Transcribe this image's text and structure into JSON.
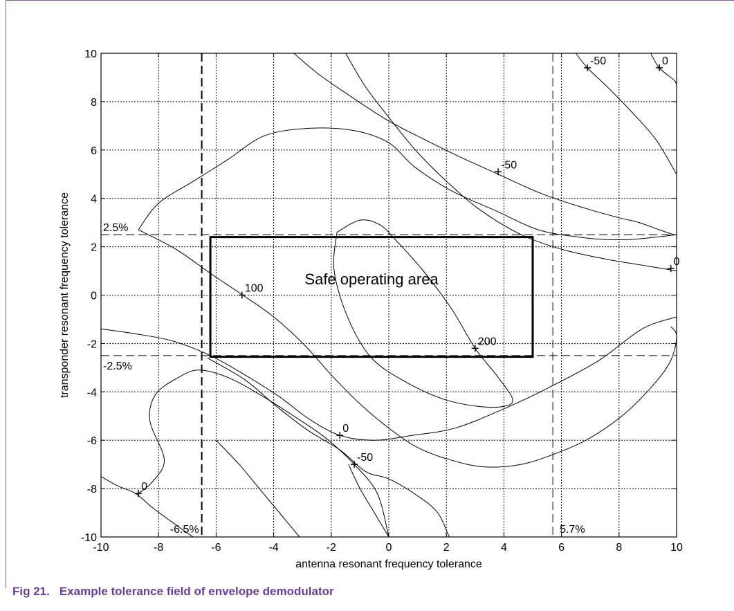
{
  "caption": {
    "number": "Fig 21.",
    "title": "Example tolerance field of envelope demodulator"
  },
  "chart_data": {
    "type": "contour",
    "xlabel": "antenna resonant frequency tolerance",
    "ylabel": "transponder resonant frequency tolerance",
    "xlim": [
      -10,
      10
    ],
    "ylim": [
      -10,
      10
    ],
    "xticks": [
      -10,
      -8,
      -6,
      -4,
      -2,
      0,
      2,
      4,
      6,
      8,
      10
    ],
    "yticks": [
      -10,
      -8,
      -6,
      -4,
      -2,
      0,
      2,
      4,
      6,
      8,
      10
    ],
    "grid": true,
    "safe_area": {
      "label": "Safe operating area",
      "x": [
        -6.2,
        5.0
      ],
      "y": [
        -2.55,
        2.4
      ]
    },
    "limit_lines": [
      {
        "orientation": "horizontal",
        "value": 2.5,
        "label": "2.5%"
      },
      {
        "orientation": "horizontal",
        "value": -2.5,
        "label": "-2.5%"
      },
      {
        "orientation": "vertical",
        "value": -6.5,
        "label": "-6.5%"
      },
      {
        "orientation": "vertical",
        "value": 5.7,
        "label": "5.7%"
      }
    ],
    "contours": [
      {
        "level": "200",
        "points": [
          [
            -1.8,
            2.6
          ],
          [
            -1.0,
            3.1
          ],
          [
            -0.3,
            2.9
          ],
          [
            0.3,
            2.2
          ],
          [
            1.2,
            1.0
          ],
          [
            2.2,
            -0.6
          ],
          [
            3.0,
            -2.2
          ],
          [
            3.8,
            -3.4
          ],
          [
            4.3,
            -4.3
          ],
          [
            4.0,
            -4.6
          ],
          [
            3.1,
            -4.6
          ],
          [
            1.9,
            -4.3
          ],
          [
            0.6,
            -3.6
          ],
          [
            -0.6,
            -2.6
          ],
          [
            -1.4,
            -1.0
          ],
          [
            -1.9,
            1.0
          ],
          [
            -1.8,
            2.6
          ]
        ]
      },
      {
        "level": "100",
        "points": [
          [
            -8.7,
            2.7
          ],
          [
            -8.0,
            3.8
          ],
          [
            -6.8,
            4.7
          ],
          [
            -5.6,
            5.6
          ],
          [
            -4.3,
            6.6
          ],
          [
            -2.7,
            6.9
          ],
          [
            -1.2,
            6.8
          ],
          [
            0.0,
            6.3
          ],
          [
            0.9,
            5.3
          ],
          [
            2.2,
            4.3
          ],
          [
            3.7,
            3.5
          ],
          [
            5.2,
            2.7
          ],
          [
            6.6,
            2.4
          ],
          [
            7.5,
            2.3
          ],
          [
            8.4,
            2.3
          ],
          [
            9.3,
            2.4
          ],
          [
            10.0,
            2.5
          ]
        ]
      },
      {
        "level": "100",
        "points": [
          [
            -8.7,
            2.7
          ],
          [
            -7.4,
            1.9
          ],
          [
            -6.2,
            0.9
          ],
          [
            -5.2,
            0.1
          ],
          [
            -4.0,
            -0.9
          ],
          [
            -2.9,
            -2.1
          ],
          [
            -2.0,
            -3.3
          ],
          [
            -1.0,
            -4.5
          ],
          [
            0.0,
            -5.5
          ],
          [
            1.0,
            -6.3
          ],
          [
            2.1,
            -6.8
          ],
          [
            3.3,
            -7.1
          ],
          [
            4.6,
            -7.0
          ],
          [
            5.9,
            -6.5
          ],
          [
            7.0,
            -5.9
          ],
          [
            8.2,
            -4.9
          ],
          [
            9.2,
            -3.7
          ],
          [
            9.8,
            -2.7
          ],
          [
            10.0,
            -1.7
          ],
          [
            9.8,
            -1.3
          ]
        ]
      },
      {
        "level": "0",
        "points": [
          [
            -1.5,
            10.0
          ],
          [
            -0.8,
            8.6
          ],
          [
            0.1,
            7.2
          ],
          [
            1.0,
            5.9
          ],
          [
            2.1,
            4.6
          ],
          [
            3.2,
            3.5
          ],
          [
            4.6,
            2.5
          ],
          [
            6.0,
            1.9
          ],
          [
            7.5,
            1.5
          ],
          [
            9.0,
            1.2
          ],
          [
            10.0,
            1.0
          ]
        ]
      },
      {
        "level": "0",
        "points": [
          [
            -10.0,
            -1.4
          ],
          [
            -8.8,
            -1.6
          ],
          [
            -7.5,
            -1.9
          ],
          [
            -6.2,
            -2.5
          ],
          [
            -5.0,
            -3.3
          ],
          [
            -3.8,
            -4.2
          ],
          [
            -2.8,
            -5.1
          ],
          [
            -1.7,
            -5.8
          ],
          [
            -0.5,
            -6.0
          ],
          [
            0.8,
            -5.8
          ],
          [
            2.3,
            -5.5
          ],
          [
            4.0,
            -4.7
          ],
          [
            5.6,
            -3.8
          ],
          [
            7.3,
            -2.7
          ],
          [
            8.8,
            -1.4
          ],
          [
            10.0,
            -0.9
          ]
        ]
      },
      {
        "level": "0",
        "points": [
          [
            -8.7,
            -8.2
          ],
          [
            -8.2,
            -7.7
          ],
          [
            -7.8,
            -6.8
          ],
          [
            -8.3,
            -5.2
          ],
          [
            -8.1,
            -4.1
          ],
          [
            -7.3,
            -3.4
          ],
          [
            -6.6,
            -3.1
          ],
          [
            -5.6,
            -3.4
          ],
          [
            -4.5,
            -4.1
          ],
          [
            -3.3,
            -5.0
          ],
          [
            -2.2,
            -5.9
          ],
          [
            -1.2,
            -7.0
          ],
          [
            -0.4,
            -8.2
          ],
          [
            0.0,
            -10.0
          ]
        ]
      },
      {
        "level": "0",
        "points": [
          [
            9.1,
            10.0
          ],
          [
            9.4,
            9.4
          ],
          [
            9.9,
            8.9
          ],
          [
            10.0,
            8.7
          ]
        ]
      },
      {
        "level": "-50",
        "points": [
          [
            -3.3,
            10.0
          ],
          [
            -2.4,
            9.1
          ],
          [
            -1.3,
            8.2
          ],
          [
            0.0,
            7.2
          ],
          [
            1.3,
            6.4
          ],
          [
            2.5,
            5.7
          ],
          [
            3.8,
            5.0
          ],
          [
            5.3,
            4.2
          ],
          [
            6.8,
            3.6
          ],
          [
            8.0,
            3.2
          ],
          [
            8.7,
            3.0
          ],
          [
            9.4,
            2.7
          ],
          [
            9.9,
            2.5
          ]
        ]
      },
      {
        "level": "-50",
        "points": [
          [
            6.5,
            10.0
          ],
          [
            6.9,
            9.4
          ],
          [
            7.6,
            8.6
          ],
          [
            8.5,
            7.5
          ],
          [
            9.3,
            6.4
          ],
          [
            10.0,
            5.0
          ]
        ]
      },
      {
        "level": "-50",
        "points": [
          [
            -6.3,
            -2.6
          ],
          [
            -5.0,
            -3.5
          ],
          [
            -3.9,
            -4.6
          ],
          [
            -2.8,
            -5.6
          ],
          [
            -1.7,
            -6.4
          ],
          [
            -0.8,
            -7.3
          ],
          [
            0.0,
            -7.6
          ],
          [
            1.0,
            -8.3
          ],
          [
            1.7,
            -9.0
          ],
          [
            2.1,
            -10.0
          ]
        ]
      },
      {
        "level": "-50",
        "points": [
          [
            -10.0,
            -7.5
          ],
          [
            -9.4,
            -7.9
          ],
          [
            -8.8,
            -8.2
          ],
          [
            -8.2,
            -8.8
          ],
          [
            -7.4,
            -9.5
          ],
          [
            -6.8,
            -10.0
          ]
        ]
      },
      {
        "level": "-50",
        "points": [
          [
            -6.0,
            -6.0
          ],
          [
            -5.2,
            -7.0
          ],
          [
            -4.5,
            -8.0
          ],
          [
            -3.8,
            -9.0
          ],
          [
            -3.1,
            -10.0
          ]
        ]
      },
      {
        "level": "-50",
        "points": [
          [
            -1.4,
            -7.0
          ],
          [
            -1.0,
            -8.0
          ],
          [
            -0.5,
            -9.0
          ],
          [
            0.0,
            -10.0
          ]
        ]
      }
    ],
    "contour_labels": [
      {
        "text": "100",
        "x": -5.1,
        "y": 0.0
      },
      {
        "text": "200",
        "x": 3.0,
        "y": -2.2
      },
      {
        "text": "0",
        "x": -1.7,
        "y": -5.8
      },
      {
        "text": "-50",
        "x": -1.2,
        "y": -7.0
      },
      {
        "text": "0",
        "x": -8.7,
        "y": -8.2
      },
      {
        "text": "-50",
        "x": 3.8,
        "y": 5.1
      },
      {
        "text": "-50",
        "x": 6.9,
        "y": 9.4
      },
      {
        "text": "0",
        "x": 9.4,
        "y": 9.4
      },
      {
        "text": "0",
        "x": 9.8,
        "y": 1.1
      }
    ]
  }
}
